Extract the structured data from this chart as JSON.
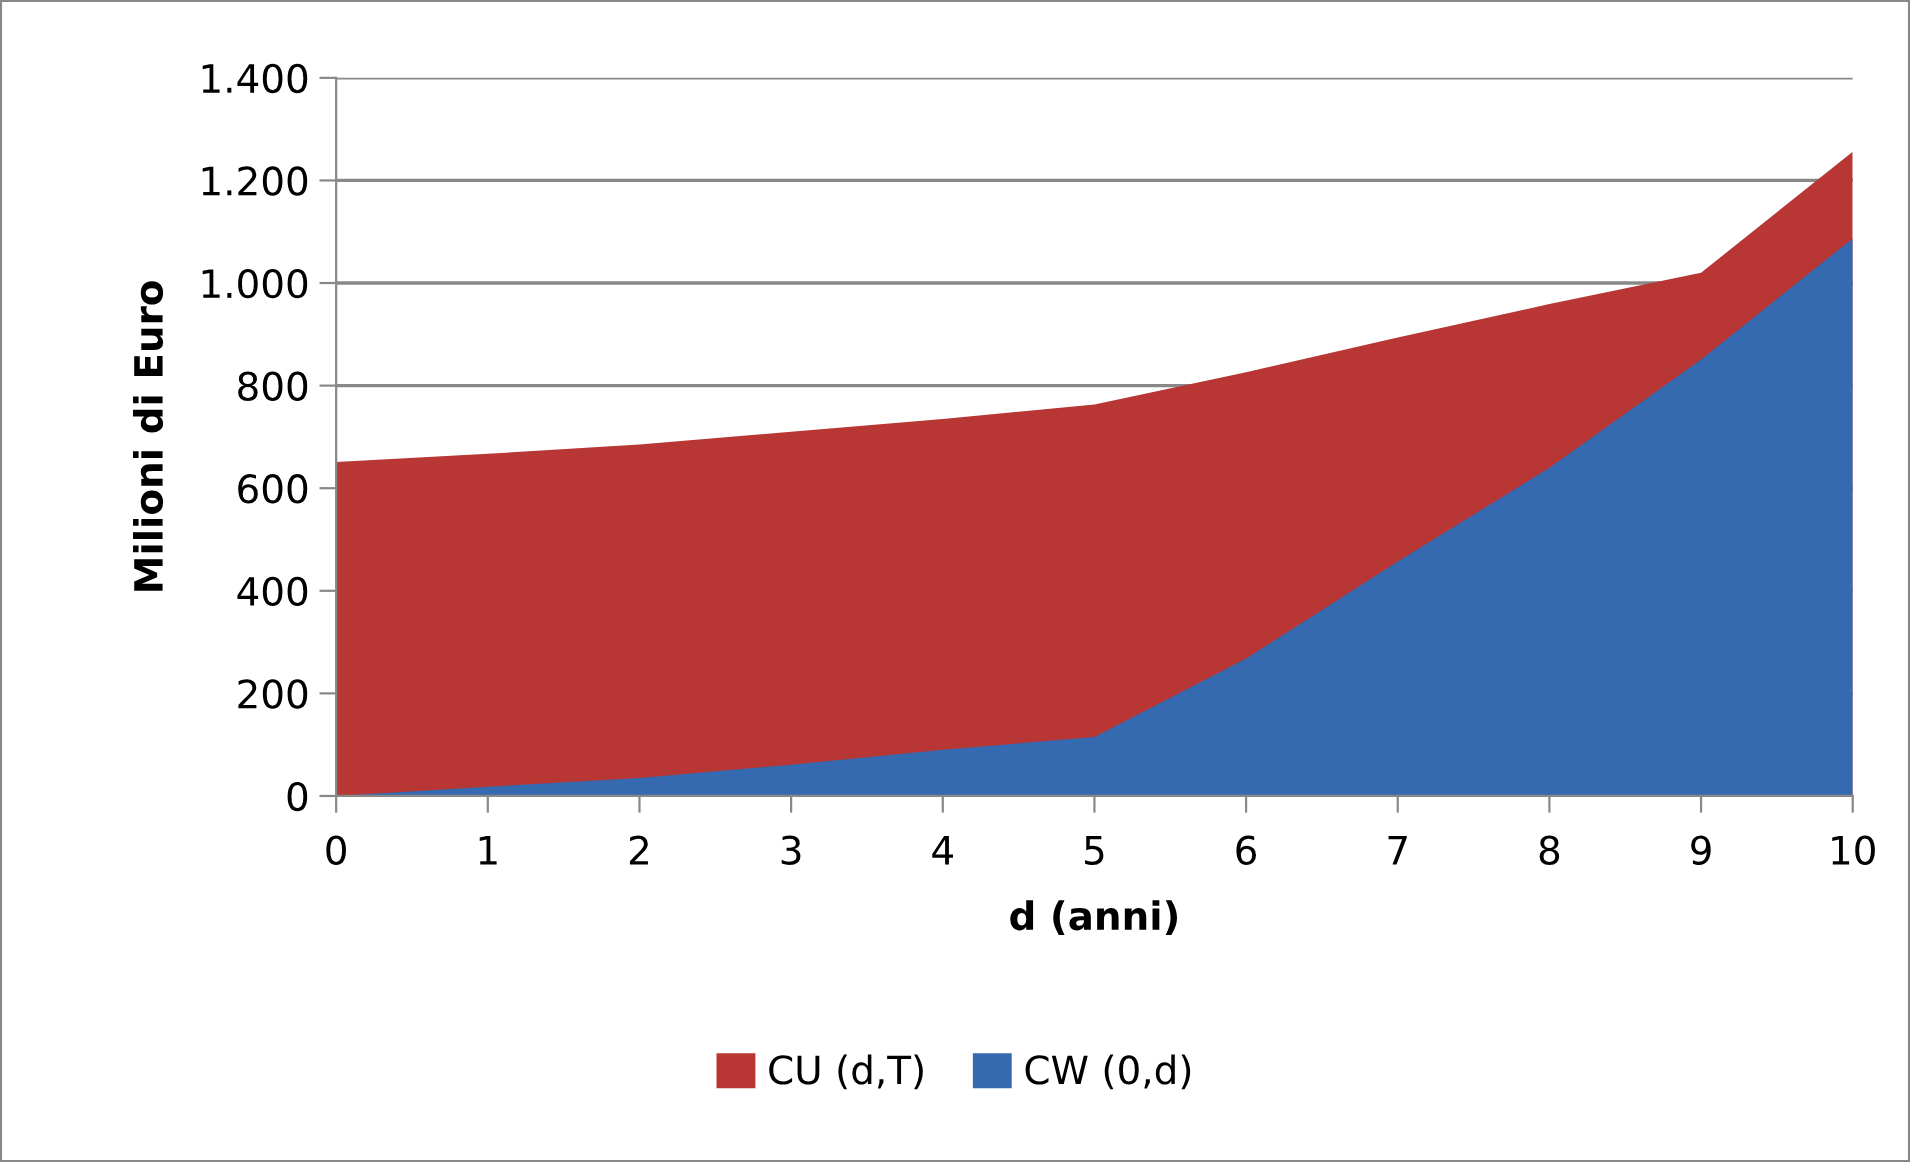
{
  "chart_data": {
    "type": "area",
    "xlabel": "d (anni)",
    "ylabel": "Milioni di Euro",
    "x": [
      0,
      1,
      2,
      3,
      4,
      5,
      6,
      7,
      8,
      9,
      10
    ],
    "series": [
      {
        "name": "CU (d,T)",
        "color": "#b83634",
        "values": [
          651,
          667,
          685,
          710,
          735,
          763,
          826,
          894,
          959,
          1020,
          1256
        ]
      },
      {
        "name": "CW (0,d)",
        "color": "#3569b0",
        "values": [
          0,
          18,
          35,
          61,
          90,
          115,
          268,
          457,
          640,
          851,
          1087
        ]
      }
    ],
    "xlim": [
      0,
      10
    ],
    "xticks": [
      0,
      1,
      2,
      3,
      4,
      5,
      6,
      7,
      8,
      9,
      10
    ],
    "ylim": [
      0,
      1400
    ],
    "yticks": [
      0,
      200,
      400,
      600,
      800,
      {
        "value": 1000,
        "label": "1.000"
      },
      {
        "value": 1200,
        "label": "1.200"
      },
      {
        "value": 1400,
        "label": "1.400"
      }
    ],
    "grid": "y",
    "legend": "bottom"
  }
}
